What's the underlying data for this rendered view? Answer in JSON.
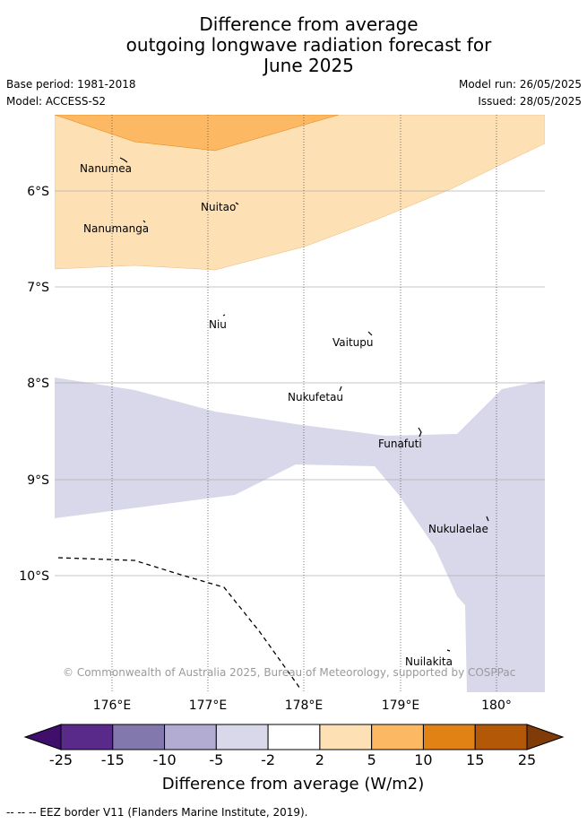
{
  "title": {
    "line1": "Difference from average",
    "line2": "outgoing longwave radiation forecast for",
    "line3": "June 2025"
  },
  "meta": {
    "base_period": "Base period: 1981-2018",
    "model": "Model: ACCESS-S2",
    "model_run": "Model run: 26/05/2025",
    "issued": "Issued: 28/05/2025"
  },
  "map": {
    "lat_ticks": [
      "6°S",
      "7°S",
      "8°S",
      "9°S",
      "10°S"
    ],
    "lon_ticks": [
      "176°E",
      "177°E",
      "178°E",
      "179°E",
      "180°"
    ],
    "places": [
      {
        "name": "Nanumea"
      },
      {
        "name": "Nuitao"
      },
      {
        "name": "Nanumanga"
      },
      {
        "name": "Niu"
      },
      {
        "name": "Vaitupu"
      },
      {
        "name": "Nukufetau"
      },
      {
        "name": "Funafuti"
      },
      {
        "name": "Nukulaelae"
      },
      {
        "name": "Nuilakita"
      }
    ],
    "copyright": "© Commonwealth of Australia 2025, Bureau of Meteorology, supported by COSPPac"
  },
  "colorbar": {
    "labels": [
      "-25",
      "-15",
      "-10",
      "-5",
      "-2",
      "2",
      "5",
      "10",
      "15",
      "25"
    ],
    "title": "Difference from average (W/m2)",
    "colors": [
      "#3f0f6b",
      "#5a2a8a",
      "#8378ae",
      "#b2abd2",
      "#d8d8ea",
      "#ffffff",
      "#fee0b5",
      "#fdb863",
      "#e08214",
      "#b35806",
      "#7f3b08"
    ]
  },
  "legend_note": "--  --  -- EEZ border V11 (Flanders Marine Institute, 2019)."
}
